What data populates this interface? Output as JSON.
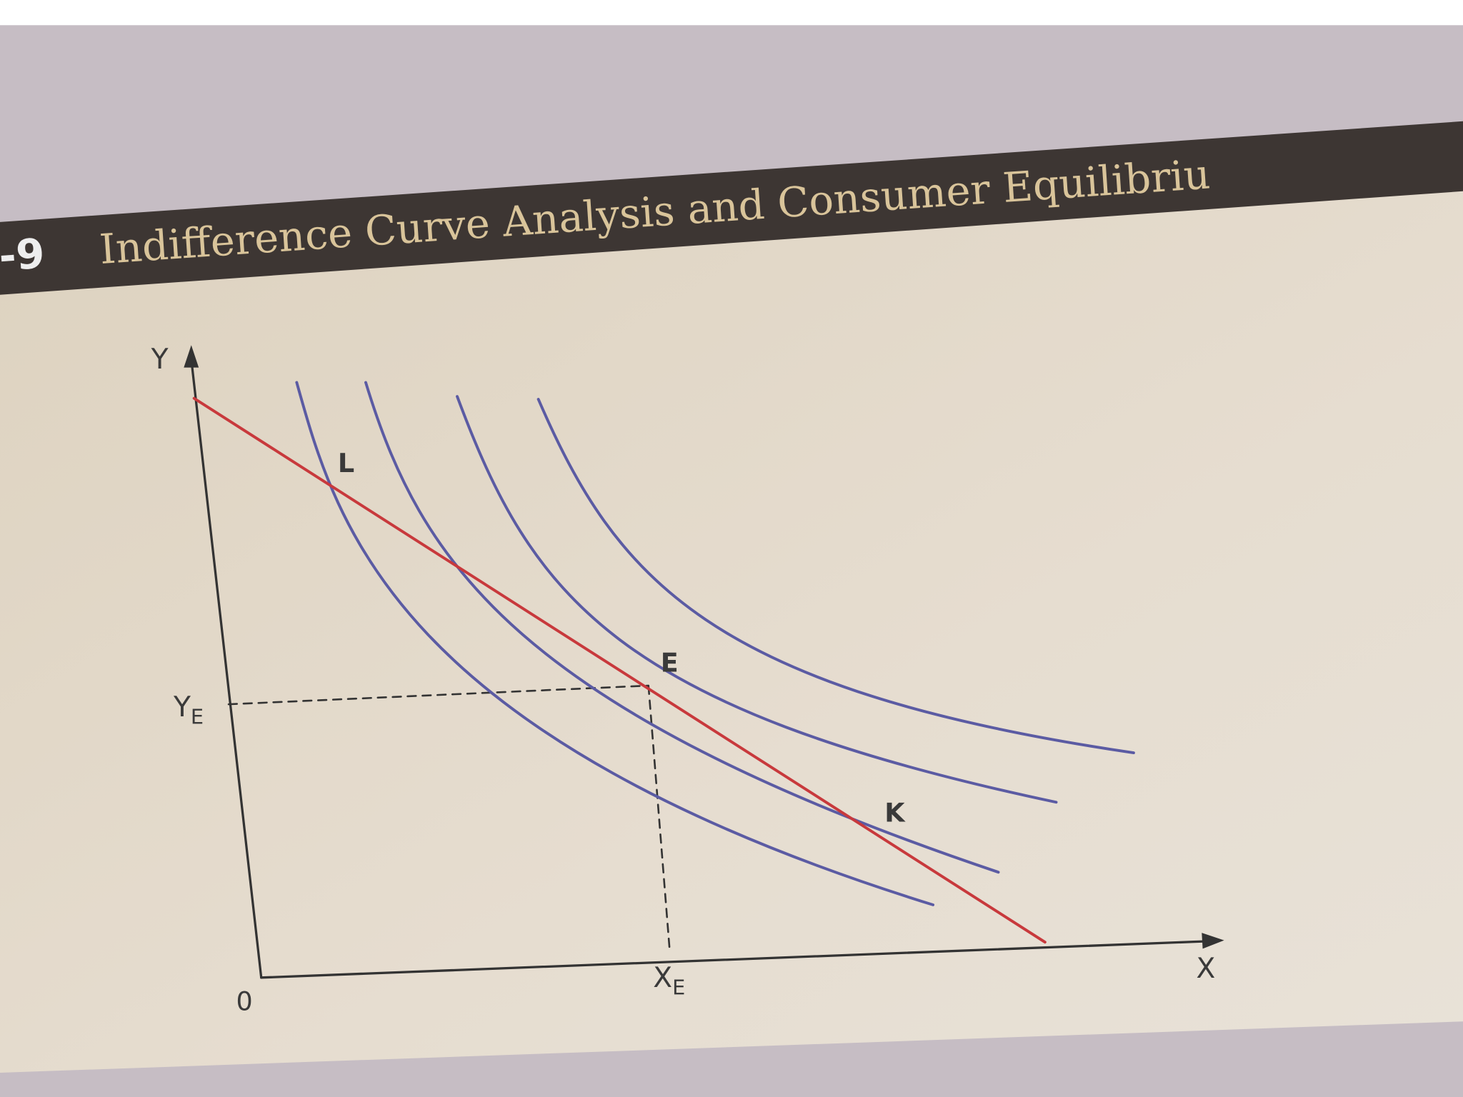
{
  "header": {
    "number": "-9",
    "title": "Indifference Curve Analysis and Consumer Equilibriu"
  },
  "axes": {
    "y": "Y",
    "x": "X",
    "origin": "0",
    "y_e": {
      "main": "Y",
      "sub": "E"
    },
    "x_e": {
      "main": "X",
      "sub": "E"
    }
  },
  "points": {
    "l": "L",
    "e": "E",
    "k": "K"
  }
}
